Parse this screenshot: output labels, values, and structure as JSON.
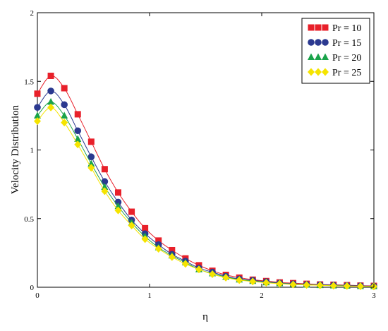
{
  "chart_data": {
    "type": "line",
    "xlabel": "η",
    "ylabel": "Velocity Distribution",
    "xlim": [
      0,
      3
    ],
    "ylim": [
      0,
      2
    ],
    "x_ticks": [
      "0",
      "1",
      "2",
      "3"
    ],
    "y_ticks": [
      "0",
      "0.5",
      "1",
      "1.5",
      "2"
    ],
    "grid": false,
    "legend_position": "top-right",
    "x": [
      0,
      0.12,
      0.24,
      0.36,
      0.48,
      0.6,
      0.72,
      0.84,
      0.96,
      1.08,
      1.2,
      1.32,
      1.44,
      1.56,
      1.68,
      1.8,
      1.92,
      2.04,
      2.16,
      2.28,
      2.4,
      2.52,
      2.64,
      2.76,
      2.88,
      3.0
    ],
    "series": [
      {
        "name": "Pr = 10",
        "marker": "square",
        "color": "#e8202a",
        "values": [
          1.41,
          1.54,
          1.45,
          1.26,
          1.06,
          0.86,
          0.69,
          0.55,
          0.43,
          0.34,
          0.27,
          0.21,
          0.16,
          0.12,
          0.09,
          0.07,
          0.055,
          0.045,
          0.035,
          0.03,
          0.025,
          0.02,
          0.018,
          0.015,
          0.012,
          0.01
        ]
      },
      {
        "name": "Pr = 15",
        "marker": "circle",
        "color": "#2b3990",
        "values": [
          1.31,
          1.43,
          1.33,
          1.14,
          0.95,
          0.77,
          0.62,
          0.49,
          0.39,
          0.31,
          0.24,
          0.19,
          0.14,
          0.11,
          0.08,
          0.06,
          0.05,
          0.04,
          0.03,
          0.025,
          0.02,
          0.018,
          0.015,
          0.012,
          0.01,
          0.008
        ]
      },
      {
        "name": "Pr = 20",
        "marker": "triangle",
        "color": "#1aa34a",
        "values": [
          1.25,
          1.35,
          1.25,
          1.08,
          0.9,
          0.73,
          0.59,
          0.47,
          0.37,
          0.29,
          0.23,
          0.18,
          0.13,
          0.1,
          0.075,
          0.055,
          0.045,
          0.035,
          0.028,
          0.022,
          0.018,
          0.015,
          0.012,
          0.01,
          0.008,
          0.007
        ]
      },
      {
        "name": "Pr = 25",
        "marker": "diamond",
        "color": "#f5e400",
        "values": [
          1.21,
          1.31,
          1.2,
          1.04,
          0.87,
          0.7,
          0.56,
          0.45,
          0.35,
          0.28,
          0.22,
          0.17,
          0.13,
          0.095,
          0.07,
          0.052,
          0.042,
          0.033,
          0.026,
          0.02,
          0.017,
          0.014,
          0.011,
          0.009,
          0.007,
          0.006
        ]
      }
    ]
  }
}
